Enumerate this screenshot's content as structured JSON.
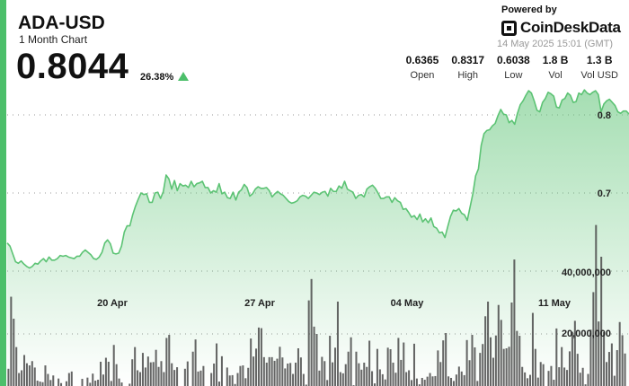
{
  "header": {
    "symbol": "ADA-USD",
    "subtitle": "1 Month Chart",
    "price": "0.8044",
    "change": "26.38%",
    "change_direction": "up-triangle-icon",
    "powered_by": "Powered by",
    "brand": "CoinDeskData",
    "timestamp": "14 May 2025 15:01 (GMT)"
  },
  "stats": [
    {
      "value": "0.6365",
      "label": "Open"
    },
    {
      "value": "0.8317",
      "label": "High"
    },
    {
      "value": "0.6038",
      "label": "Low"
    },
    {
      "value": "1.8 B",
      "label": "Vol"
    },
    {
      "value": "1.3 B",
      "label": "Vol USD"
    }
  ],
  "colors": {
    "accent": "#4cbf6a",
    "line": "#5cc374",
    "volume": "#4a4a4a"
  },
  "chart_data": {
    "type": "line",
    "title": "",
    "xlabel": "",
    "ylabel": "",
    "x_ticks": [
      "20 Apr",
      "27 Apr",
      "04 May",
      "11 May"
    ],
    "y_ticks": [
      "0.7",
      "0.8"
    ],
    "volume_ticks": [
      "20,000,000",
      "40,000,000"
    ],
    "ylim": [
      0.59,
      0.84
    ],
    "volume_lim": [
      0,
      60000000
    ],
    "grid": true,
    "series": [
      {
        "values": [
          0.636,
          0.632,
          0.622,
          0.612,
          0.61,
          0.613,
          0.609,
          0.606,
          0.604,
          0.606,
          0.61,
          0.609,
          0.613,
          0.616,
          0.612,
          0.618,
          0.614,
          0.614,
          0.616,
          0.62,
          0.619,
          0.62,
          0.618,
          0.617,
          0.616,
          0.619,
          0.619,
          0.624,
          0.627,
          0.624,
          0.621,
          0.616,
          0.615,
          0.618,
          0.624,
          0.636,
          0.64,
          0.635,
          0.623,
          0.622,
          0.623,
          0.632,
          0.65,
          0.658,
          0.658,
          0.672,
          0.683,
          0.692,
          0.7,
          0.698,
          0.699,
          0.688,
          0.688,
          0.7,
          0.701,
          0.693,
          0.702,
          0.723,
          0.718,
          0.705,
          0.716,
          0.703,
          0.712,
          0.709,
          0.71,
          0.707,
          0.715,
          0.708,
          0.712,
          0.713,
          0.715,
          0.707,
          0.707,
          0.7,
          0.703,
          0.701,
          0.712,
          0.699,
          0.701,
          0.694,
          0.693,
          0.701,
          0.691,
          0.701,
          0.704,
          0.711,
          0.707,
          0.696,
          0.699,
          0.705,
          0.708,
          0.706,
          0.706,
          0.707,
          0.703,
          0.695,
          0.699,
          0.702,
          0.699,
          0.697,
          0.693,
          0.689,
          0.687,
          0.688,
          0.69,
          0.695,
          0.697,
          0.696,
          0.693,
          0.697,
          0.701,
          0.7,
          0.698,
          0.701,
          0.702,
          0.696,
          0.706,
          0.702,
          0.702,
          0.709,
          0.706,
          0.715,
          0.705,
          0.703,
          0.701,
          0.693,
          0.697,
          0.698,
          0.695,
          0.705,
          0.708,
          0.71,
          0.706,
          0.7,
          0.693,
          0.693,
          0.695,
          0.695,
          0.688,
          0.694,
          0.69,
          0.688,
          0.679,
          0.68,
          0.675,
          0.669,
          0.671,
          0.666,
          0.673,
          0.663,
          0.667,
          0.662,
          0.668,
          0.657,
          0.655,
          0.649,
          0.65,
          0.643,
          0.657,
          0.67,
          0.678,
          0.677,
          0.68,
          0.674,
          0.672,
          0.665,
          0.682,
          0.699,
          0.722,
          0.731,
          0.761,
          0.776,
          0.78,
          0.781,
          0.786,
          0.789,
          0.799,
          0.807,
          0.801,
          0.8,
          0.79,
          0.793,
          0.788,
          0.802,
          0.813,
          0.818,
          0.825,
          0.831,
          0.828,
          0.818,
          0.806,
          0.804,
          0.816,
          0.821,
          0.829,
          0.827,
          0.824,
          0.81,
          0.809,
          0.819,
          0.821,
          0.828,
          0.825,
          0.816,
          0.817,
          0.828,
          0.826,
          0.832,
          0.828,
          0.826,
          0.829,
          0.831,
          0.826,
          0.804,
          0.814,
          0.818,
          0.82,
          0.816,
          0.812,
          0.804,
          0.802,
          0.805,
          0.805,
          0.801
        ]
      }
    ],
    "volume": [
      8.3,
      31.9,
      24.7,
      15.4,
      6.9,
      7.8,
      12.8,
      10.1,
      9.4,
      10.8,
      8.7,
      4.4,
      4.1,
      3.9,
      9.4,
      6.6,
      4.6,
      6.1,
      1.1,
      5.1,
      3.6,
      2.3,
      4.2,
      6.9,
      7.4,
      2.2,
      2.2,
      2.5,
      5.0,
      2.6,
      5.4,
      3.7,
      6.7,
      4.4,
      4.7,
      10.6,
      6.4,
      11.9,
      10.6,
      4.3,
      16.1,
      9.8,
      5.1,
      3.8,
      0.7,
      0.3,
      3.4,
      11.4,
      15.4,
      7.8,
      7.2,
      13.5,
      8.7,
      12.3,
      10.4,
      10.5,
      14.5,
      8.9,
      10.8,
      7.2,
      18.4,
      19.4,
      10.1,
      7.9,
      8.8,
      1.4,
      2.1,
      8.3,
      10.7,
      0.7,
      13.9,
      17.9,
      7.4,
      7.7,
      9.2,
      2.5,
      1.2,
      6.9,
      10.0,
      16.6,
      4.1,
      12.4,
      2.6,
      8.7,
      6.1,
      6.2,
      3.3,
      6.9,
      9.2,
      9.4,
      5.2,
      8.6,
      18.2,
      12.3,
      14.9,
      21.8,
      21.6,
      12.1,
      10.3,
      12.1,
      12.1,
      10.9,
      11.6,
      15.5,
      12.0,
      8.4,
      10.0,
      10.2,
      6.6,
      10.3,
      15.0,
      12.0,
      6.6,
      3.1,
      30.7,
      37.7,
      22.1,
      19.7,
      7.7,
      12.2,
      10.8,
      4.6,
      19.1,
      10.4,
      15.2,
      30.3,
      7.2,
      6.8,
      9.8,
      13.9,
      18.6,
      2.9,
      13.9,
      10.1,
      8.0,
      10.3,
      8.9,
      17.5,
      7.5,
      3.5,
      14.8,
      8.1,
      6.5,
      4.8,
      15.2,
      14.7,
      10.3,
      7.0,
      18.4,
      11.2,
      16.9,
      7.2,
      7.8,
      4.6,
      16.5,
      5.1,
      3.2,
      5.3,
      4.7,
      5.7,
      6.9,
      5.8,
      5.9,
      14.3,
      10.5,
      17.6,
      20.0,
      5.8,
      5.3,
      4.3,
      6.4,
      9.0,
      7.4,
      6.2,
      17.7,
      11.1,
      19.4,
      15.3,
      4.3,
      13.5,
      16.4,
      25.5,
      30.3,
      18.6,
      11.9,
      19.2,
      29.2,
      24.3,
      14.8,
      15.0,
      15.5,
      30.0,
      44.1,
      20.7,
      19.1,
      8.9,
      7.1,
      5.2,
      6.3,
      26.6,
      14.8,
      5.4,
      10.5,
      9.8,
      2.6,
      7.6,
      9.2,
      4.7,
      21.5,
      8.8,
      15.4,
      8.7,
      7.9,
      14.0,
      20.4,
      24.0,
      13.2,
      7.0,
      8.6,
      3.2,
      6.6,
      21.1,
      33.4,
      55.4,
      23.8,
      45.0,
      20.3,
      10.5,
      13.8,
      16.6,
      6.0,
      14.4,
      23.6,
      19.3,
      13.3,
      2.2
    ]
  }
}
